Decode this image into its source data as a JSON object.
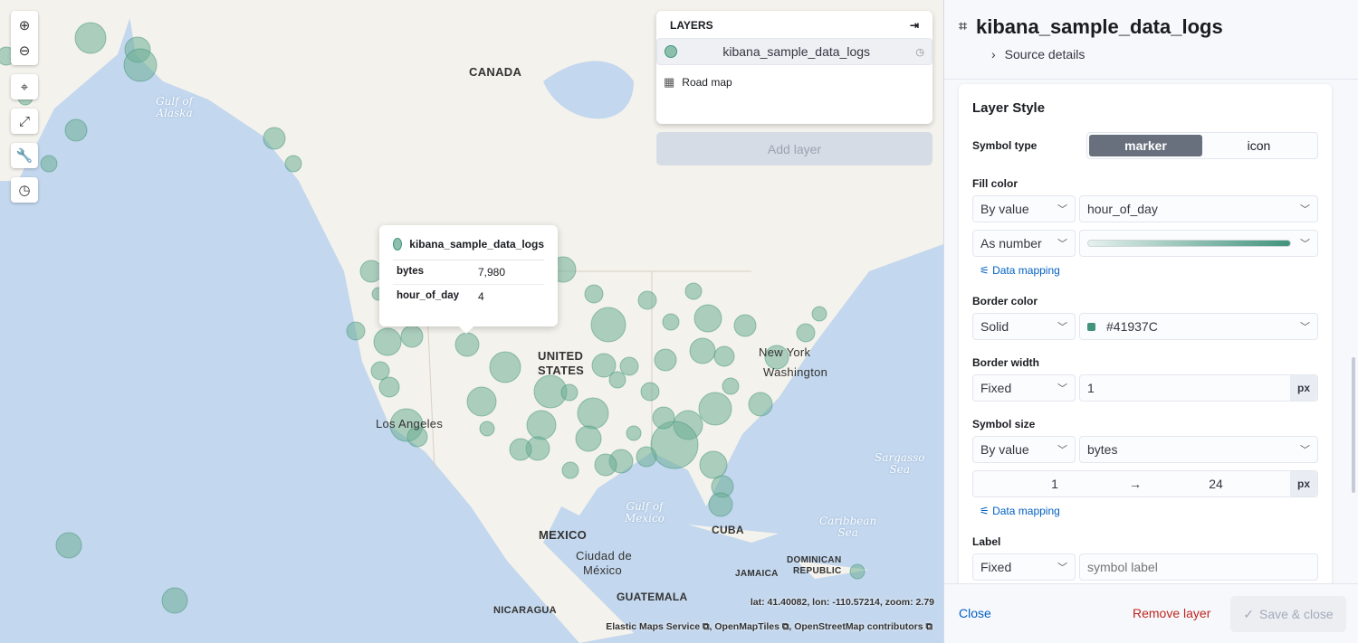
{
  "map": {
    "labels": {
      "canada": "CANADA",
      "us1": "UNITED",
      "us2": "STATES",
      "mexico": "MEXICO",
      "cuba": "CUBA",
      "guatemala": "GUATEMALA",
      "nicaragua": "NICARAGUA",
      "jamaica": "JAMAICA",
      "dominican1": "DOMINICAN",
      "dominican2": "REPUBLIC",
      "ciudad1": "Ciudad de",
      "ciudad2": "México",
      "newyork": "New York",
      "washington": "Washington",
      "la": "Los Angeles"
    },
    "seas": {
      "alaska": "Gulf of\nAlaska",
      "mexico": "Gulf of\nMexico",
      "sargasso": "Sargasso\nSea",
      "caribbean": "Caribbean\nSea"
    },
    "coords": "lat: 41.40082, lon: -110.57214, zoom: 2.79",
    "attribution": {
      "ems": "Elastic Maps Service",
      "omt": "OpenMapTiles",
      "osm": "OpenStreetMap contributors"
    },
    "point_color": "#41937C"
  },
  "layers": {
    "title": "LAYERS",
    "items": [
      {
        "name": "kibana_sample_data_logs",
        "icon": "circle"
      },
      {
        "name": "Road map",
        "icon": "grid"
      }
    ],
    "add_layer": "Add layer"
  },
  "tooltip": {
    "layer": "kibana_sample_data_logs",
    "rows": [
      {
        "key": "bytes",
        "value": "7,980"
      },
      {
        "key": "hour_of_day",
        "value": "4"
      }
    ]
  },
  "panel": {
    "title": "kibana_sample_data_logs",
    "source_details": "Source details",
    "layer_style": "Layer Style",
    "symbol_type": {
      "label": "Symbol type",
      "options": [
        "marker",
        "icon"
      ],
      "selected": "marker"
    },
    "fill_color": {
      "label": "Fill color",
      "mode": "By value",
      "field": "hour_of_day",
      "as": "As number",
      "data_mapping": "Data mapping"
    },
    "border_color": {
      "label": "Border color",
      "mode": "Solid",
      "value": "#41937C"
    },
    "border_width": {
      "label": "Border width",
      "mode": "Fixed",
      "value": "1",
      "unit": "px"
    },
    "symbol_size": {
      "label": "Symbol size",
      "mode": "By value",
      "field": "bytes",
      "min": "1",
      "max": "24",
      "unit": "px",
      "data_mapping": "Data mapping"
    },
    "label": {
      "label": "Label",
      "mode": "Fixed",
      "placeholder": "symbol label"
    },
    "footer": {
      "close": "Close",
      "remove": "Remove layer",
      "save": "Save & close"
    }
  }
}
